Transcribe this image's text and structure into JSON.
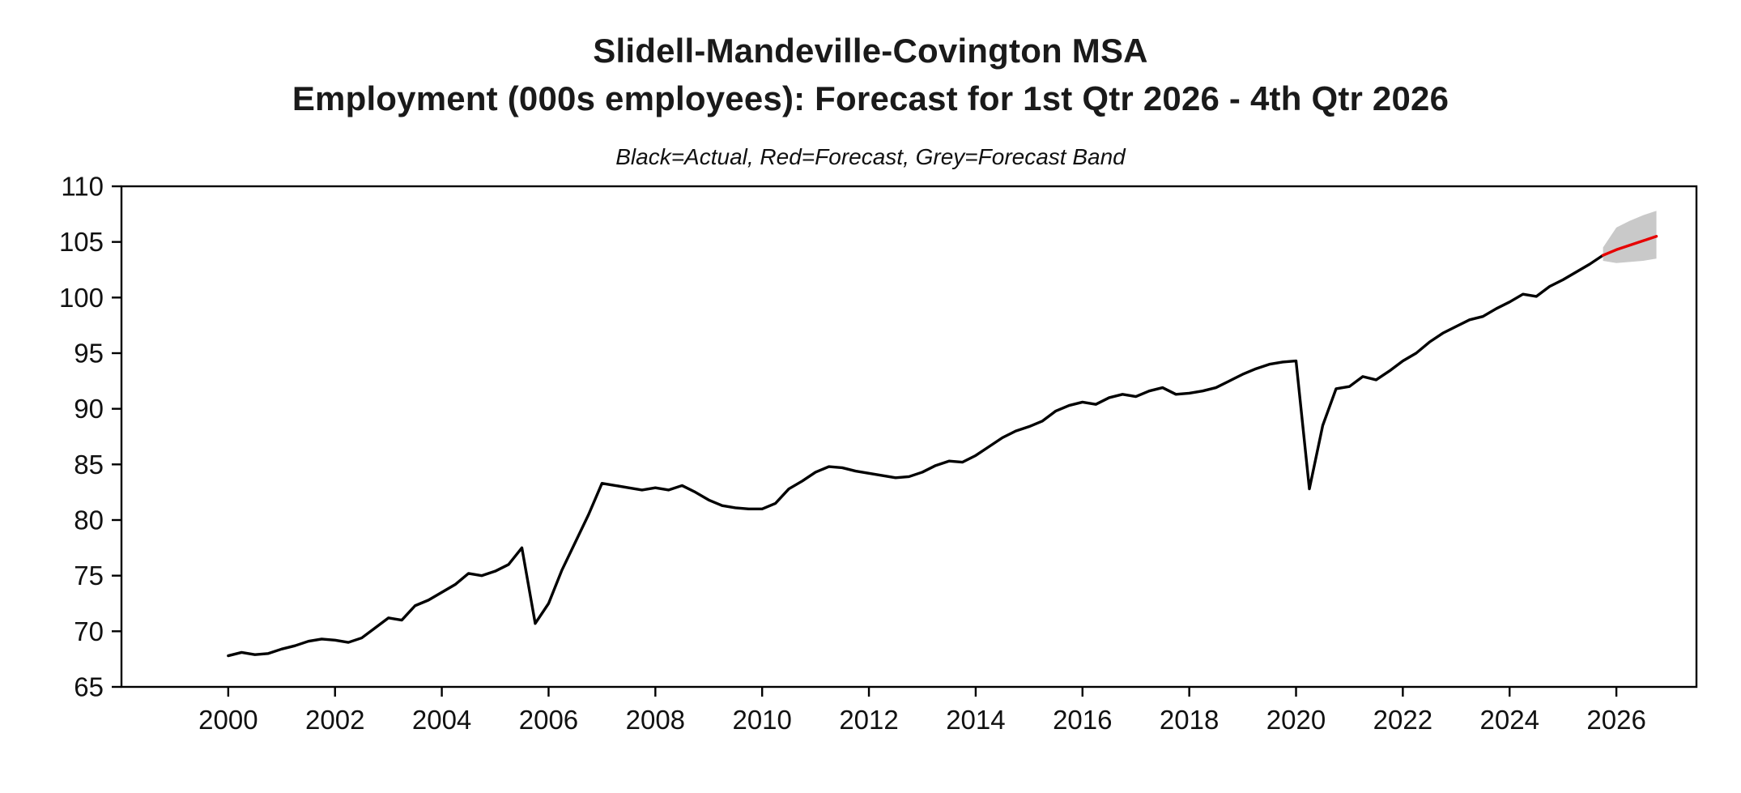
{
  "chart_data": {
    "type": "line",
    "title_line1": "Slidell-Mandeville-Covington MSA",
    "title_line2": "Employment (000s employees): Forecast for 1st Qtr 2026 - 4th Qtr 2026",
    "subtitle": "Black=Actual, Red=Forecast, Grey=Forecast Band",
    "xlabel": "",
    "ylabel": "",
    "x_range": [
      1998,
      2027.5
    ],
    "ylim": [
      65,
      110
    ],
    "yticks": [
      65,
      70,
      75,
      80,
      85,
      90,
      95,
      100,
      105,
      110
    ],
    "xticks": [
      2000,
      2002,
      2004,
      2006,
      2008,
      2010,
      2012,
      2014,
      2016,
      2018,
      2020,
      2022,
      2024,
      2026
    ],
    "grid": "off",
    "legend_position": "none (legend described in subtitle)",
    "colors": {
      "actual": "#000000",
      "forecast": "#e60000",
      "band": "#c9c9c9",
      "axis": "#000000"
    },
    "series_actual": {
      "name": "Actual employment (000s), quarterly",
      "x_start": 2000.0,
      "x_step": 0.25,
      "y": [
        67.8,
        68.1,
        67.9,
        68.0,
        68.4,
        68.7,
        69.1,
        69.3,
        69.2,
        69.0,
        69.4,
        70.3,
        71.2,
        71.0,
        72.3,
        72.8,
        73.5,
        74.2,
        75.2,
        75.0,
        75.4,
        76.0,
        77.5,
        70.7,
        72.5,
        75.5,
        78.0,
        80.5,
        83.3,
        83.1,
        82.9,
        82.7,
        82.9,
        82.7,
        83.1,
        82.5,
        81.8,
        81.3,
        81.1,
        81.0,
        81.0,
        81.5,
        82.8,
        83.5,
        84.3,
        84.8,
        84.7,
        84.4,
        84.2,
        84.0,
        83.8,
        83.9,
        84.3,
        84.9,
        85.3,
        85.2,
        85.8,
        86.6,
        87.4,
        88.0,
        88.4,
        88.9,
        89.8,
        90.3,
        90.6,
        90.4,
        91.0,
        91.3,
        91.1,
        91.6,
        91.9,
        91.3,
        91.4,
        91.6,
        91.9,
        92.5,
        93.1,
        93.6,
        94.0,
        94.2,
        94.3,
        82.8,
        88.5,
        91.8,
        92.0,
        92.9,
        92.6,
        93.4,
        94.3,
        95.0,
        96.0,
        96.8,
        97.4,
        98.0,
        98.3,
        99.0,
        99.6,
        100.3,
        100.1,
        101.0,
        101.6,
        102.3,
        103.0,
        103.8
      ]
    },
    "series_forecast": {
      "name": "Forecast 1st Qtr 2026 - 4th Qtr 2026",
      "x": [
        2025.75,
        2026.0,
        2026.25,
        2026.5,
        2026.75
      ],
      "y": [
        103.8,
        104.3,
        104.7,
        105.1,
        105.5
      ]
    },
    "forecast_band": {
      "name": "Forecast band",
      "x": [
        2025.75,
        2026.0,
        2026.25,
        2026.5,
        2026.75
      ],
      "upper": [
        104.5,
        106.3,
        106.9,
        107.4,
        107.8
      ],
      "lower": [
        103.3,
        103.1,
        103.2,
        103.3,
        103.5
      ]
    }
  }
}
